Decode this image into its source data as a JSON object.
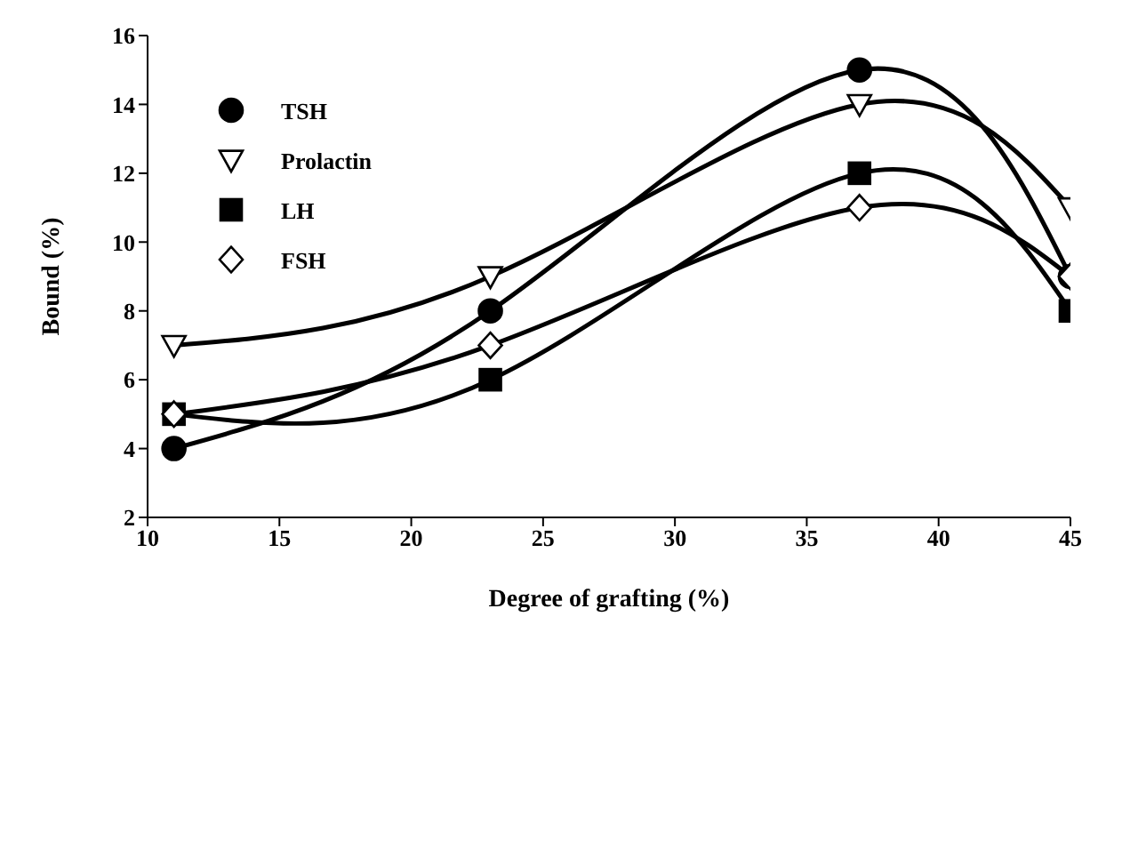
{
  "chart_data": {
    "type": "line",
    "xlabel": "Degree of grafting (%)",
    "ylabel": "Bound (%)",
    "x": [
      11,
      23,
      37,
      45
    ],
    "series": [
      {
        "name": "TSH",
        "color": "#000000",
        "marker": "circle",
        "values": [
          4,
          8,
          15,
          9
        ]
      },
      {
        "name": "Prolactin",
        "color": "#000000",
        "marker": "triangle",
        "values": [
          7,
          9,
          14,
          11
        ]
      },
      {
        "name": "LH",
        "color": "#000000",
        "marker": "square",
        "values": [
          5,
          6,
          12,
          8
        ]
      },
      {
        "name": "FSH",
        "color": "#000000",
        "marker": "diamond",
        "values": [
          5,
          7,
          11,
          9
        ]
      }
    ],
    "xlim": [
      10,
      45
    ],
    "xticks": [
      10,
      15,
      20,
      25,
      30,
      35,
      40,
      45
    ],
    "ylim": [
      2,
      16
    ],
    "yticks": [
      2,
      4,
      6,
      8,
      10,
      12,
      14,
      16
    ],
    "grid": false,
    "legend": "top left",
    "line_style": "solid"
  }
}
